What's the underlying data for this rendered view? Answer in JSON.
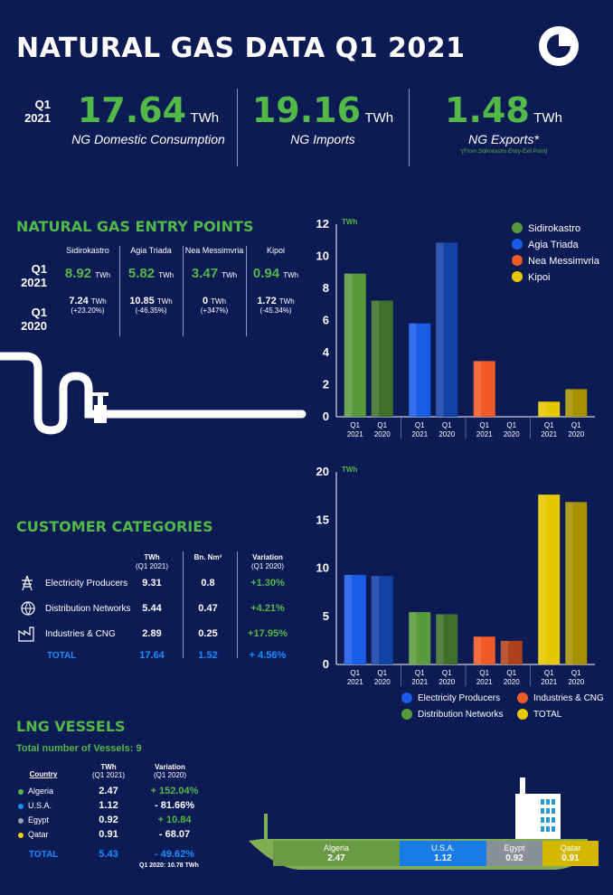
{
  "header": {
    "title": "NATURAL GAS DATA Q1 2021",
    "period_q": "Q1",
    "period_y": "2021"
  },
  "kpis": [
    {
      "value": "17.64",
      "unit": "TWh",
      "label": "NG Domestic Consumption",
      "note": ""
    },
    {
      "value": "19.16",
      "unit": "TWh",
      "label": "NG Imports",
      "note": ""
    },
    {
      "value": "1.48",
      "unit": "TWh",
      "label": "NG Exports*",
      "note": "*(From Sidirokastro Entry-Exit Point)"
    }
  ],
  "entry_points": {
    "title": "NATURAL GAS ENTRY POINTS",
    "unit": "TWh",
    "rows": [
      {
        "q": "Q1",
        "y": "2021"
      },
      {
        "q": "Q1",
        "y": "2020"
      }
    ],
    "points": [
      {
        "name": "Sidirokastro",
        "v2021": "8.92",
        "v2020": "7.24",
        "change": "(+23.20%)"
      },
      {
        "name": "Agia Triada",
        "v2021": "5.82",
        "v2020": "10.85",
        "change": "(-46.35%)"
      },
      {
        "name": "Nea Messimvria",
        "v2021": "3.47",
        "v2020": "0",
        "change": "(+347%)"
      },
      {
        "name": "Kipoi",
        "v2021": "0.94",
        "v2020": "1.72",
        "change": "(-45.34%)"
      }
    ]
  },
  "customers": {
    "title": "CUSTOMER CATEGORIES",
    "col_twh": "TWh",
    "col_twh_sub": "(Q1 2021)",
    "col_bn": "Bn. Nm³",
    "col_var": "Variation",
    "col_var_sub": "(Q1 2020)",
    "rows": [
      {
        "name": "Electricity Producers",
        "twh": "9.31",
        "bn": "0.8",
        "var": "+1.30%"
      },
      {
        "name": "Distribution Networks",
        "twh": "5.44",
        "bn": "0.47",
        "var": "+4.21%"
      },
      {
        "name": "Industries & CNG",
        "twh": "2.89",
        "bn": "0.25",
        "var": "+17.95%"
      }
    ],
    "total": {
      "name": "TOTAL",
      "twh": "17.64",
      "bn": "1.52",
      "var": "+ 4.56%"
    }
  },
  "lng": {
    "title": "LNG VESSELS",
    "vessels": "Total number of Vessels: 9",
    "col_country": "Country",
    "col_twh": "TWh",
    "col_twh_sub": "(Q1 2021)",
    "col_var": "Variation",
    "col_var_sub": "(Q1 2020)",
    "rows": [
      {
        "country": "Algeria",
        "twh": "2.47",
        "var": "+ 152.04%",
        "color": "#52b848"
      },
      {
        "country": "U.S.A.",
        "twh": "1.12",
        "var": "- 81.66%",
        "color": "#1a8cff"
      },
      {
        "country": "Egypt",
        "twh": "0.92",
        "var": "+ 10.84",
        "color": "#9aa0a6"
      },
      {
        "country": "Qatar",
        "twh": "0.91",
        "var": "- 68.07",
        "color": "#f0d000"
      }
    ],
    "total": {
      "country": "TOTAL",
      "twh": "5.43",
      "var": "- 49.62%"
    },
    "footnote": "Q1 2020: 10.78 TWh"
  },
  "chart_data": [
    {
      "type": "bar",
      "ylabel": "TWh",
      "ylim": [
        0,
        12
      ],
      "yticks": [
        0,
        2,
        4,
        6,
        8,
        10,
        12
      ],
      "groups": [
        {
          "name": "Sidirokastro",
          "color": "#5a9a3c",
          "values": [
            8.92,
            7.24
          ]
        },
        {
          "name": "Agia Triada",
          "color": "#1a5ce6",
          "values": [
            5.82,
            10.85
          ]
        },
        {
          "name": "Nea Messimvria",
          "color": "#f05a28",
          "values": [
            3.47,
            0
          ]
        },
        {
          "name": "Kipoi",
          "color": "#e6c800",
          "values": [
            0.94,
            1.72
          ]
        }
      ],
      "categories": [
        {
          "q": "Q1",
          "y": "2021"
        },
        {
          "q": "Q1",
          "y": "2020"
        }
      ],
      "legend": "top-right"
    },
    {
      "type": "bar",
      "ylabel": "TWh",
      "ylim": [
        0,
        20
      ],
      "yticks": [
        0,
        5,
        10,
        15,
        20
      ],
      "groups": [
        {
          "name": "Electricity Producers",
          "color": "#1a5ce6",
          "values": [
            9.31,
            9.19
          ]
        },
        {
          "name": "Distribution Networks",
          "color": "#5a9a3c",
          "values": [
            5.44,
            5.22
          ]
        },
        {
          "name": "Industries & CNG",
          "color": "#f05a28",
          "values": [
            2.89,
            2.45
          ]
        },
        {
          "name": "TOTAL",
          "color": "#e6c800",
          "values": [
            17.64,
            16.87
          ]
        }
      ],
      "categories": [
        {
          "q": "Q1",
          "y": "2021"
        },
        {
          "q": "Q1",
          "y": "2020"
        }
      ],
      "legend": "bottom"
    }
  ]
}
